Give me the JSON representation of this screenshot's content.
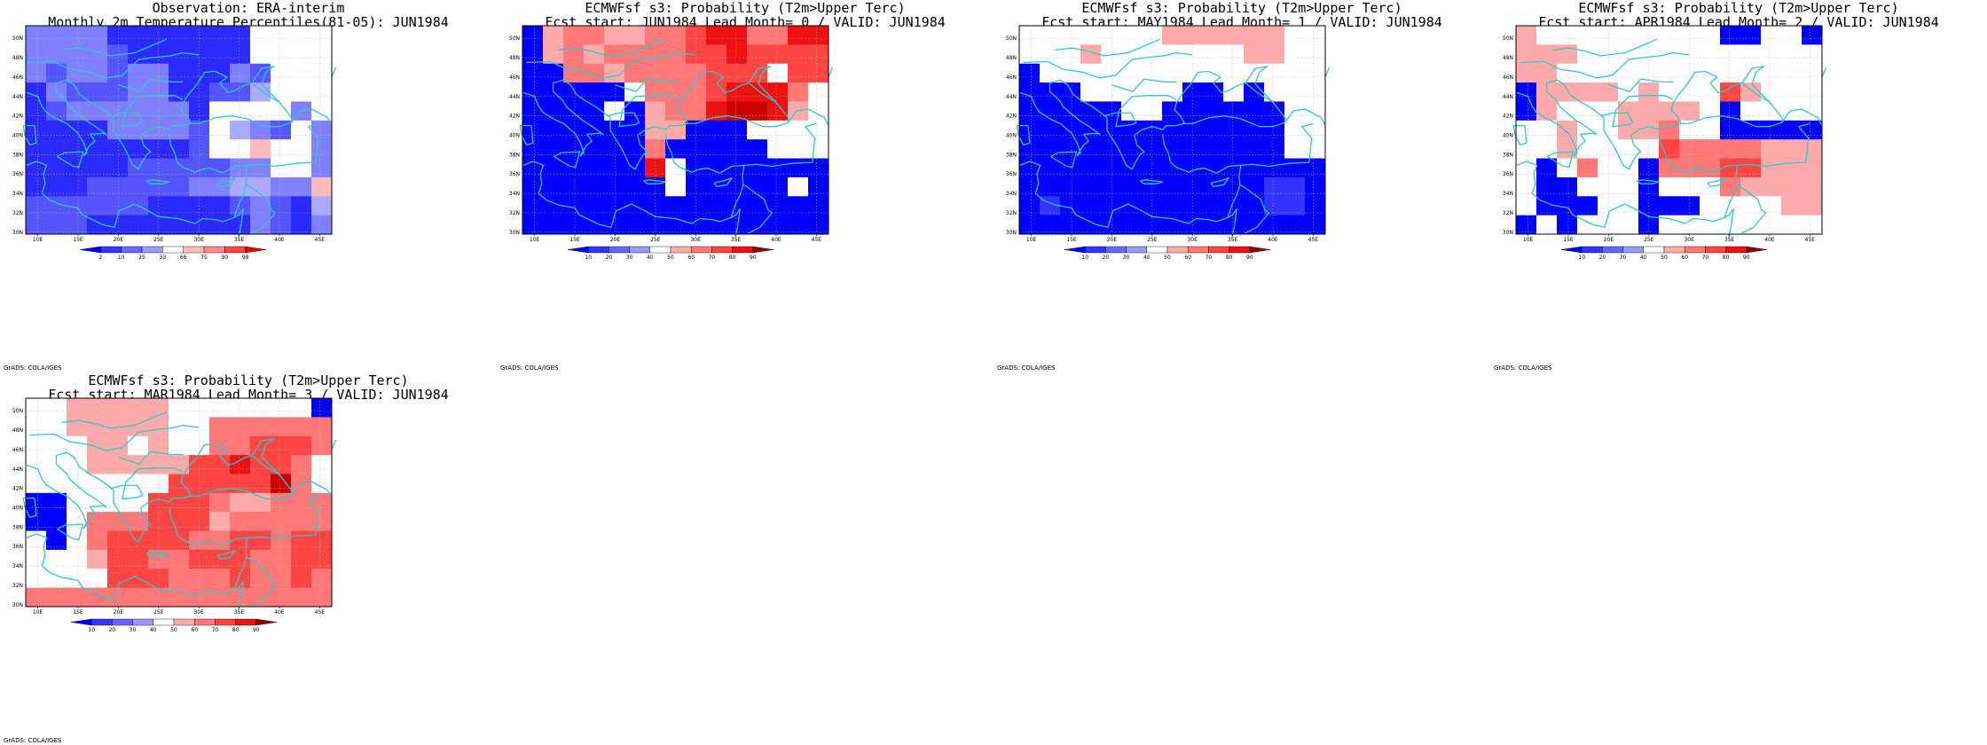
{
  "panels": [
    {
      "id": "obs",
      "title_line1": "Observation: ERA-interim",
      "title_line2": "Monthly 2m Temperature Percentiles(81-05): JUN1984",
      "colorbar": [
        "2",
        "10",
        "25",
        "33",
        "66",
        "75",
        "90",
        "98"
      ],
      "colorbar_type": "percentile",
      "footer": "GrADS: COLA/IGES"
    },
    {
      "id": "lead0",
      "title_line1": "ECMWFsf s3: Probability (T2m>Upper Terc)",
      "title_line2": "Fcst start: JUN1984  Lead Month= 0 / VALID: JUN1984",
      "colorbar": [
        "10",
        "20",
        "30",
        "40",
        "50",
        "60",
        "70",
        "80",
        "90"
      ],
      "colorbar_type": "probability",
      "footer": "GrADS: COLA/IGES"
    },
    {
      "id": "lead1",
      "title_line1": "ECMWFsf s3: Probability (T2m>Upper Terc)",
      "title_line2": "Fcst start: MAY1984  Lead Month= 1 / VALID: JUN1984",
      "colorbar": [
        "10",
        "20",
        "30",
        "40",
        "50",
        "60",
        "70",
        "80",
        "90"
      ],
      "colorbar_type": "probability",
      "footer": "GrADS: COLA/IGES"
    },
    {
      "id": "lead2",
      "title_line1": "ECMWFsf s3: Probability (T2m>Upper Terc)",
      "title_line2": "Fcst start: APR1984  Lead Month= 2 / VALID: JUN1984",
      "colorbar": [
        "10",
        "20",
        "30",
        "40",
        "50",
        "60",
        "70",
        "80",
        "90"
      ],
      "colorbar_type": "probability",
      "footer": "GrADS: COLA/IGES"
    },
    {
      "id": "lead3",
      "title_line1": "ECMWFsf s3: Probability (T2m>Upper Terc)",
      "title_line2": "Fcst start: MAR1984  Lead Month= 3 / VALID: JUN1984",
      "colorbar": [
        "10",
        "20",
        "30",
        "40",
        "50",
        "60",
        "70",
        "80",
        "90"
      ],
      "colorbar_type": "probability",
      "footer": "GrADS: COLA/IGES"
    }
  ],
  "axes": {
    "lon_ticks": [
      "10E",
      "15E",
      "20E",
      "25E",
      "30E",
      "35E",
      "40E",
      "45E"
    ],
    "lat_ticks": [
      "30N",
      "32N",
      "34N",
      "36N",
      "38N",
      "40N",
      "42N",
      "44N",
      "46N",
      "48N",
      "50N"
    ]
  },
  "colors": {
    "coastline": "#30c8c8",
    "prob_scale": [
      "#0000ff",
      "#3333ff",
      "#6666ff",
      "#9999ff",
      "#ffffff",
      "#ffaaaa",
      "#ff7777",
      "#ff4444",
      "#ee1111",
      "#cc0000",
      "#990000"
    ],
    "obs_scale": [
      "#0000ff",
      "#2a2aff",
      "#5555ff",
      "#8080ff",
      "#aaaaff",
      "#ffffff",
      "#ffbbbb",
      "#ff8888",
      "#ff4444",
      "#ee0000"
    ]
  },
  "chart_data": [
    {
      "type": "heatmap",
      "title": "Observation: ERA-interim / Monthly 2m Temperature Percentiles(81-05): JUN1984",
      "x": [
        "10E",
        "12.5E",
        "15E",
        "17.5E",
        "20E",
        "22.5E",
        "25E",
        "27.5E",
        "30E",
        "32.5E",
        "35E",
        "37.5E",
        "40E",
        "42.5E",
        "45E"
      ],
      "y": [
        "50N",
        "48N",
        "46N",
        "44N",
        "42N",
        "40N",
        "38N",
        "36N",
        "34N",
        "32N",
        "30N"
      ],
      "values": [
        [
          3,
          3,
          3,
          3,
          1,
          1,
          1,
          1,
          1,
          1,
          1,
          5,
          5,
          5,
          5
        ],
        [
          3,
          3,
          3,
          3,
          2,
          1,
          1,
          1,
          1,
          1,
          1,
          5,
          5,
          5,
          5
        ],
        [
          3,
          2,
          3,
          3,
          2,
          3,
          3,
          1,
          1,
          1,
          3,
          2,
          5,
          5,
          5
        ],
        [
          1,
          3,
          2,
          2,
          2,
          3,
          3,
          1,
          1,
          2,
          2,
          4,
          5,
          5,
          5
        ],
        [
          1,
          2,
          3,
          3,
          3,
          3,
          3,
          3,
          1,
          5,
          5,
          5,
          5,
          3,
          5
        ],
        [
          1,
          1,
          1,
          1,
          3,
          3,
          3,
          3,
          2,
          5,
          4,
          3,
          2,
          5,
          3
        ],
        [
          1,
          1,
          1,
          1,
          1,
          1,
          1,
          1,
          2,
          5,
          5,
          6,
          5,
          5,
          3
        ],
        [
          1,
          1,
          1,
          1,
          1,
          2,
          2,
          2,
          2,
          2,
          3,
          3,
          5,
          5,
          3
        ],
        [
          1,
          1,
          1,
          2,
          2,
          2,
          2,
          2,
          3,
          3,
          4,
          4,
          3,
          3,
          6
        ],
        [
          2,
          2,
          2,
          2,
          2,
          2,
          1,
          1,
          1,
          1,
          2,
          3,
          2,
          1,
          4
        ],
        [
          2,
          2,
          2,
          1,
          1,
          1,
          1,
          1,
          1,
          1,
          1,
          3,
          2,
          1,
          3
        ]
      ]
    },
    {
      "type": "heatmap",
      "title": "ECMWFsf s3: Probability (T2m>Upper Terc) / Fcst start: JUN1984 Lead Month= 0",
      "x": [
        "10E",
        "12.5E",
        "15E",
        "17.5E",
        "20E",
        "22.5E",
        "25E",
        "27.5E",
        "30E",
        "32.5E",
        "35E",
        "37.5E",
        "40E",
        "42.5E",
        "45E"
      ],
      "y": [
        "50N",
        "48N",
        "46N",
        "44N",
        "42N",
        "40N",
        "38N",
        "36N",
        "34N",
        "32N",
        "30N"
      ],
      "values": [
        [
          0,
          5,
          6,
          6,
          5,
          5,
          6,
          6,
          7,
          8,
          8,
          6,
          6,
          8,
          8
        ],
        [
          0,
          5,
          6,
          5,
          6,
          6,
          6,
          6,
          7,
          7,
          8,
          7,
          7,
          7,
          7
        ],
        [
          0,
          0,
          6,
          6,
          5,
          6,
          6,
          6,
          6,
          7,
          7,
          7,
          4,
          7,
          7
        ],
        [
          0,
          0,
          0,
          0,
          0,
          4,
          6,
          6,
          6,
          7,
          8,
          8,
          8,
          6,
          4
        ],
        [
          0,
          0,
          0,
          0,
          4,
          0,
          5,
          6,
          6,
          8,
          9,
          9,
          8,
          5,
          4
        ],
        [
          0,
          0,
          0,
          0,
          0,
          0,
          5,
          5,
          0,
          0,
          0,
          4,
          4,
          4,
          4
        ],
        [
          0,
          0,
          0,
          0,
          0,
          0,
          6,
          0,
          0,
          0,
          0,
          0,
          4,
          4,
          4
        ],
        [
          0,
          0,
          0,
          0,
          0,
          0,
          8,
          4,
          0,
          0,
          0,
          0,
          0,
          0,
          0
        ],
        [
          0,
          0,
          0,
          0,
          0,
          0,
          0,
          4,
          0,
          0,
          0,
          0,
          0,
          4,
          0
        ],
        [
          0,
          0,
          0,
          0,
          0,
          0,
          0,
          0,
          0,
          0,
          0,
          0,
          0,
          0,
          0
        ],
        [
          0,
          0,
          0,
          0,
          0,
          0,
          0,
          0,
          0,
          0,
          0,
          0,
          0,
          0,
          0
        ]
      ]
    },
    {
      "type": "heatmap",
      "title": "ECMWFsf s3: Probability (T2m>Upper Terc) / Fcst start: MAY1984 Lead Month= 1",
      "x": [
        "10E",
        "12.5E",
        "15E",
        "17.5E",
        "20E",
        "22.5E",
        "25E",
        "27.5E",
        "30E",
        "32.5E",
        "35E",
        "37.5E",
        "40E",
        "42.5E",
        "45E"
      ],
      "y": [
        "50N",
        "48N",
        "46N",
        "44N",
        "42N",
        "40N",
        "38N",
        "36N",
        "34N",
        "32N",
        "30N"
      ],
      "values": [
        [
          4,
          4,
          4,
          4,
          4,
          4,
          4,
          5,
          5,
          5,
          5,
          5,
          5,
          4,
          4
        ],
        [
          4,
          4,
          4,
          5,
          4,
          4,
          4,
          4,
          4,
          4,
          4,
          5,
          5,
          4,
          4
        ],
        [
          0,
          4,
          4,
          4,
          4,
          4,
          4,
          4,
          4,
          4,
          4,
          4,
          4,
          4,
          4
        ],
        [
          0,
          0,
          0,
          4,
          4,
          4,
          4,
          4,
          0,
          0,
          4,
          0,
          4,
          4,
          4
        ],
        [
          0,
          0,
          0,
          0,
          0,
          4,
          4,
          0,
          0,
          0,
          0,
          0,
          0,
          4,
          4
        ],
        [
          0,
          0,
          0,
          0,
          0,
          0,
          0,
          0,
          0,
          0,
          0,
          0,
          0,
          4,
          4
        ],
        [
          0,
          0,
          0,
          0,
          0,
          0,
          0,
          0,
          0,
          0,
          0,
          0,
          0,
          4,
          4
        ],
        [
          0,
          0,
          0,
          0,
          0,
          0,
          0,
          0,
          0,
          0,
          0,
          0,
          0,
          0,
          0
        ],
        [
          0,
          0,
          0,
          0,
          0,
          0,
          0,
          0,
          0,
          0,
          0,
          0,
          1,
          1,
          0
        ],
        [
          0,
          1,
          0,
          0,
          0,
          0,
          0,
          0,
          0,
          0,
          0,
          0,
          1,
          1,
          0
        ],
        [
          0,
          0,
          0,
          0,
          0,
          0,
          0,
          0,
          0,
          0,
          0,
          0,
          0,
          0,
          0
        ]
      ]
    },
    {
      "type": "heatmap",
      "title": "ECMWFsf s3: Probability (T2m>Upper Terc) / Fcst start: APR1984 Lead Month= 2",
      "x": [
        "10E",
        "12.5E",
        "15E",
        "17.5E",
        "20E",
        "22.5E",
        "25E",
        "27.5E",
        "30E",
        "32.5E",
        "35E",
        "37.5E",
        "40E",
        "42.5E",
        "45E"
      ],
      "y": [
        "50N",
        "48N",
        "46N",
        "44N",
        "42N",
        "40N",
        "38N",
        "36N",
        "34N",
        "32N",
        "30N"
      ],
      "values": [
        [
          5,
          4,
          4,
          4,
          4,
          4,
          4,
          4,
          4,
          4,
          0,
          0,
          4,
          4,
          0
        ],
        [
          5,
          5,
          5,
          4,
          4,
          4,
          4,
          4,
          4,
          4,
          4,
          4,
          4,
          4,
          4
        ],
        [
          5,
          5,
          4,
          4,
          4,
          4,
          4,
          4,
          4,
          4,
          4,
          4,
          4,
          4,
          4
        ],
        [
          0,
          5,
          5,
          5,
          5,
          4,
          5,
          4,
          4,
          4,
          7,
          5,
          4,
          4,
          4
        ],
        [
          0,
          5,
          4,
          4,
          4,
          5,
          5,
          5,
          5,
          4,
          0,
          4,
          4,
          4,
          4
        ],
        [
          4,
          4,
          5,
          4,
          4,
          5,
          5,
          6,
          4,
          4,
          0,
          0,
          0,
          0,
          0
        ],
        [
          4,
          4,
          5,
          4,
          4,
          4,
          4,
          7,
          6,
          6,
          6,
          6,
          5,
          5,
          5
        ],
        [
          4,
          0,
          4,
          6,
          4,
          4,
          0,
          6,
          6,
          6,
          7,
          7,
          5,
          5,
          5
        ],
        [
          4,
          0,
          0,
          4,
          4,
          4,
          0,
          4,
          4,
          4,
          6,
          5,
          5,
          5,
          5
        ],
        [
          4,
          0,
          0,
          0,
          4,
          4,
          0,
          0,
          0,
          4,
          4,
          4,
          4,
          5,
          5
        ],
        [
          0,
          4,
          0,
          4,
          4,
          4,
          0,
          4,
          4,
          4,
          4,
          4,
          4,
          4,
          4
        ]
      ]
    },
    {
      "type": "heatmap",
      "title": "ECMWFsf s3: Probability (T2m>Upper Terc) / Fcst start: MAR1984 Lead Month= 3",
      "x": [
        "10E",
        "12.5E",
        "15E",
        "17.5E",
        "20E",
        "22.5E",
        "25E",
        "27.5E",
        "30E",
        "32.5E",
        "35E",
        "37.5E",
        "40E",
        "42.5E",
        "45E"
      ],
      "y": [
        "50N",
        "48N",
        "46N",
        "44N",
        "42N",
        "40N",
        "38N",
        "36N",
        "34N",
        "32N",
        "30N"
      ],
      "values": [
        [
          4,
          4,
          5,
          5,
          5,
          5,
          5,
          4,
          4,
          4,
          4,
          4,
          4,
          4,
          0
        ],
        [
          4,
          4,
          5,
          5,
          5,
          5,
          5,
          4,
          4,
          6,
          6,
          6,
          6,
          6,
          6
        ],
        [
          4,
          4,
          4,
          5,
          5,
          4,
          5,
          4,
          4,
          6,
          6,
          7,
          7,
          7,
          6
        ],
        [
          4,
          4,
          4,
          5,
          5,
          5,
          5,
          5,
          7,
          7,
          8,
          7,
          7,
          6,
          4
        ],
        [
          4,
          4,
          4,
          4,
          4,
          4,
          4,
          7,
          7,
          7,
          7,
          7,
          9,
          6,
          4
        ],
        [
          0,
          0,
          4,
          4,
          4,
          4,
          7,
          7,
          7,
          6,
          5,
          5,
          6,
          6,
          6
        ],
        [
          0,
          0,
          4,
          6,
          6,
          6,
          7,
          7,
          7,
          5,
          6,
          6,
          6,
          6,
          6
        ],
        [
          4,
          0,
          4,
          6,
          7,
          7,
          7,
          7,
          6,
          6,
          7,
          7,
          6,
          7,
          7
        ],
        [
          4,
          4,
          4,
          5,
          7,
          7,
          6,
          6,
          7,
          7,
          7,
          6,
          6,
          7,
          7
        ],
        [
          4,
          4,
          4,
          4,
          7,
          7,
          7,
          6,
          6,
          6,
          7,
          6,
          6,
          7,
          6
        ],
        [
          6,
          6,
          6,
          6,
          6,
          6,
          6,
          6,
          6,
          6,
          6,
          6,
          6,
          6,
          6
        ]
      ]
    }
  ]
}
